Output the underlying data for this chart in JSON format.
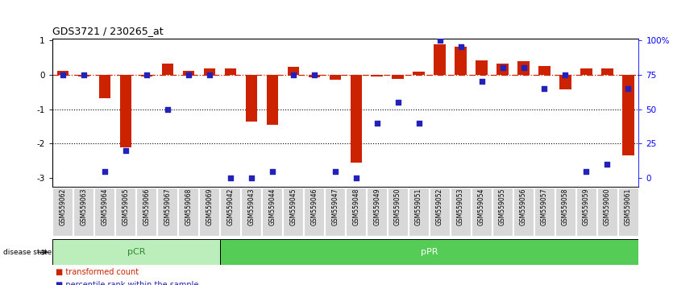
{
  "title": "GDS3721 / 230265_at",
  "samples": [
    "GSM559062",
    "GSM559063",
    "GSM559064",
    "GSM559065",
    "GSM559066",
    "GSM559067",
    "GSM559068",
    "GSM559069",
    "GSM559042",
    "GSM559043",
    "GSM559044",
    "GSM559045",
    "GSM559046",
    "GSM559047",
    "GSM559048",
    "GSM559049",
    "GSM559050",
    "GSM559051",
    "GSM559052",
    "GSM559053",
    "GSM559054",
    "GSM559055",
    "GSM559056",
    "GSM559057",
    "GSM559058",
    "GSM559059",
    "GSM559060",
    "GSM559061"
  ],
  "red_bars": [
    0.12,
    -0.05,
    -0.68,
    -2.12,
    -0.05,
    0.32,
    0.12,
    0.18,
    0.18,
    -1.35,
    -1.45,
    0.22,
    -0.08,
    -0.15,
    -2.55,
    -0.05,
    -0.12,
    0.08,
    0.88,
    0.82,
    0.42,
    0.32,
    0.38,
    0.25,
    -0.42,
    0.18,
    0.18,
    -2.35
  ],
  "blue_pct": [
    75,
    75,
    5,
    20,
    75,
    50,
    75,
    75,
    0,
    0,
    5,
    75,
    75,
    5,
    0,
    40,
    55,
    40,
    100,
    95,
    70,
    80,
    80,
    65,
    75,
    5,
    10,
    65
  ],
  "pCR_count": 8,
  "pPR_count": 20,
  "ylim": [
    -3.25,
    1.05
  ],
  "yticks": [
    1,
    0,
    -1,
    -2,
    -3
  ],
  "ytick_labels": [
    "1",
    "0",
    "-1",
    "-2",
    "-3"
  ],
  "right_pct": [
    100,
    75,
    50,
    25,
    0
  ],
  "right_labels": [
    "100%",
    "75",
    "50",
    "25",
    "0"
  ],
  "hlines": [
    -1.0,
    -2.0
  ],
  "bar_color": "#cc2200",
  "dot_color": "#2222bb",
  "pCR_bg": "#bbeebb",
  "pPR_bg": "#55cc55",
  "pCR_text_color": "#338833",
  "pPR_text_color": "#ffffff",
  "bar_width": 0.55
}
